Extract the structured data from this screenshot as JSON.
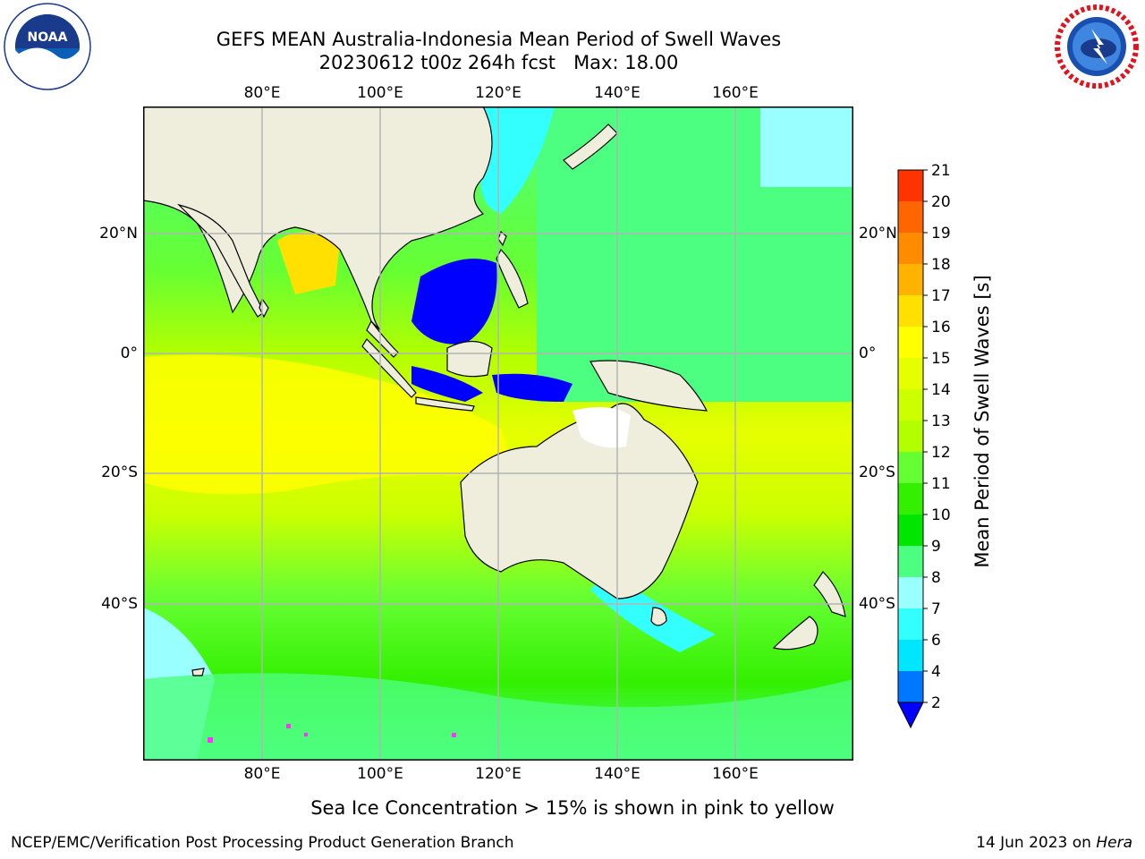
{
  "header": {
    "title_line1": "GEFS MEAN Australia-Indonesia Mean Period of Swell Waves",
    "title_line2": "20230612 t00z 264h fcst   Max: 18.00"
  },
  "logos": {
    "noaa_text": "NOAA",
    "noaa_ring_text": "NATIONAL OCEANIC AND ATMOSPHERIC ADMINISTRATION · U.S. DEPARTMENT OF COMMERCE",
    "nws_ring_text": "NATIONAL WEATHER SERVICE"
  },
  "map": {
    "lon_ticks": [
      "80°E",
      "100°E",
      "120°E",
      "140°E",
      "160°E"
    ],
    "lat_ticks": [
      "20°N",
      "0°",
      "20°S",
      "40°S"
    ],
    "land_color": "#efeddc",
    "grid_color": "#b3b3b3"
  },
  "colorbar": {
    "title": "Mean Period of Swell Waves [s]",
    "levels": [
      "2",
      "4",
      "6",
      "7",
      "8",
      "9",
      "10",
      "11",
      "12",
      "13",
      "14",
      "15",
      "16",
      "17",
      "18",
      "19",
      "20",
      "21"
    ],
    "colors": [
      "#0077ff",
      "#00e6ff",
      "#33ffff",
      "#99ffff",
      "#4dff80",
      "#00e600",
      "#33f000",
      "#66ff33",
      "#b3ff00",
      "#ccff00",
      "#e6ff00",
      "#ffff00",
      "#ffe000",
      "#ffb300",
      "#ff8c00",
      "#ff6600",
      "#ff3300",
      "#ff0000"
    ],
    "under_color": "#0000ff"
  },
  "notes": {
    "sea_ice": "Sea Ice Concentration > 15% is shown in pink to yellow"
  },
  "footer": {
    "left": "NCEP/EMC/Verification Post Processing Product Generation Branch",
    "right_date": "14 Jun 2023 on ",
    "right_host": "Hera"
  }
}
